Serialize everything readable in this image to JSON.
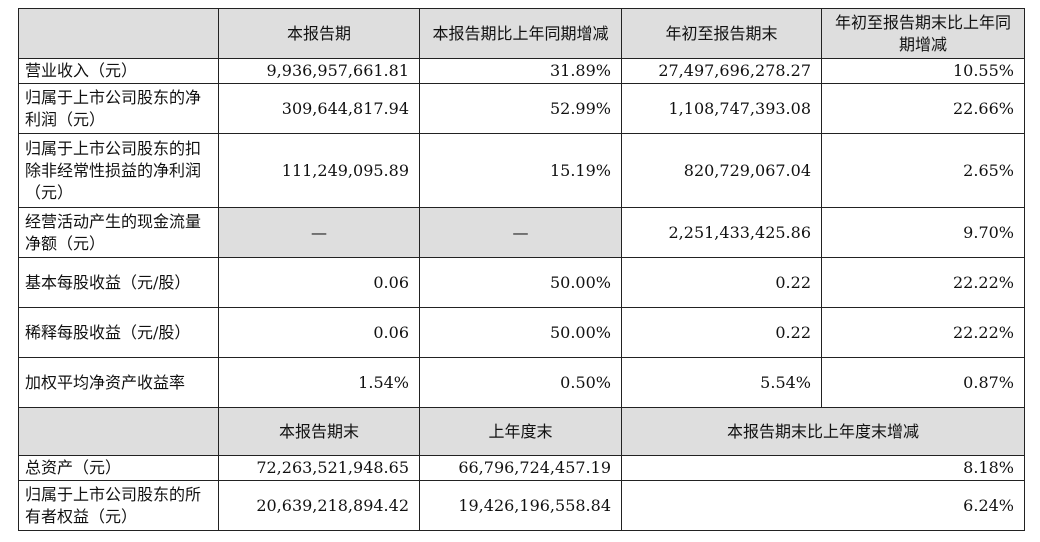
{
  "header1": {
    "col1": "本报告期",
    "col2": "本报告期比上年同期增减",
    "col3": "年初至报告期末",
    "col4": "年初至报告期末比上年同期增减"
  },
  "rows1": [
    {
      "label": "营业收入（元）",
      "v1": "9,936,957,661.81",
      "v2": "31.89%",
      "v3": "27,497,696,278.27",
      "v4": "10.55%"
    },
    {
      "label": "归属于上市公司股东的净利润（元）",
      "v1": "309,644,817.94",
      "v2": "52.99%",
      "v3": "1,108,747,393.08",
      "v4": "22.66%"
    },
    {
      "label": "归属于上市公司股东的扣除非经常性损益的净利润（元）",
      "v1": "111,249,095.89",
      "v2": "15.19%",
      "v3": "820,729,067.04",
      "v4": "2.65%"
    },
    {
      "label": "经营活动产生的现金流量净额（元）",
      "v1": "—",
      "v2": "—",
      "v3": "2,251,433,425.86",
      "v4": "9.70%"
    },
    {
      "label": "基本每股收益（元/股）",
      "v1": "0.06",
      "v2": "50.00%",
      "v3": "0.22",
      "v4": "22.22%"
    },
    {
      "label": "稀释每股收益（元/股）",
      "v1": "0.06",
      "v2": "50.00%",
      "v3": "0.22",
      "v4": "22.22%"
    },
    {
      "label": "加权平均净资产收益率",
      "v1": "1.54%",
      "v2": "0.50%",
      "v3": "5.54%",
      "v4": "0.87%"
    }
  ],
  "header2": {
    "col1": "本报告期末",
    "col2": "上年度末",
    "col3": "本报告期末比上年度末增减"
  },
  "rows2": [
    {
      "label": "总资产（元）",
      "v1": "72,263,521,948.65",
      "v2": "66,796,724,457.19",
      "v3": "8.18%"
    },
    {
      "label": "归属于上市公司股东的所有者权益（元）",
      "v1": "20,639,218,894.42",
      "v2": "19,426,196,558.84",
      "v3": "6.24%"
    }
  ]
}
